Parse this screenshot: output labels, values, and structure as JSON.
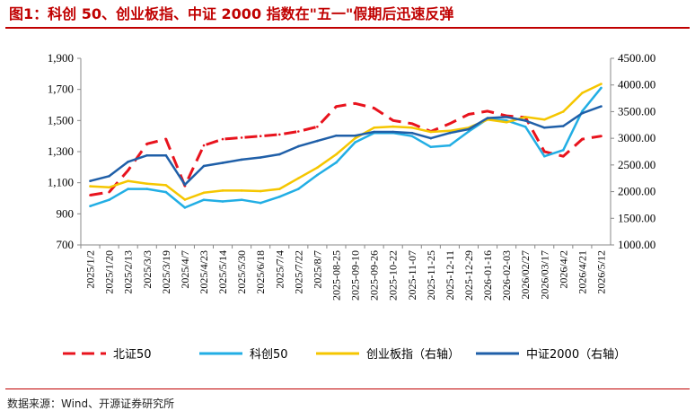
{
  "figure": {
    "title": "图1：科创 50、创业板指、中证 2000 指数在\"五一\"假期后迅速反弹",
    "source": "数据来源：Wind、开源证券研究所"
  },
  "chart_data": {
    "type": "line",
    "title": "图1：科创 50、创业板指、中证 2000 指数在\"五一\"假期后迅速反弹",
    "y_left": {
      "ylim": [
        700,
        1900
      ],
      "ticks": [
        "700",
        "900",
        "1,100",
        "1,300",
        "1,500",
        "1,700",
        "1,900"
      ]
    },
    "y_right": {
      "ylim": [
        1000,
        4500
      ],
      "ticks": [
        "1000.00",
        "1500.00",
        "2000.00",
        "2500.00",
        "3000.00",
        "3500.00",
        "4000.00",
        "4500.00"
      ]
    },
    "x_ticks": [
      "2025/1/2",
      "2025/1/20",
      "2025/2/13",
      "2025/3/3",
      "2025/3/19",
      "2025/4/7",
      "2025/4/23",
      "2025/5/14",
      "2025/5/30",
      "2025/6/18",
      "2025/7/4",
      "2025/7/22",
      "2025/8/7",
      "2025-08-25",
      "2025-09-10",
      "2025-09-26",
      "2025-10-22",
      "2025-11-07",
      "2025-11-25",
      "2025-12-11",
      "2025-12-29",
      "2026-01-16",
      "2026-02-03",
      "2026/02/27",
      "2026/03/17",
      "2026/4/2",
      "2026/4/21",
      "2026/5/12"
    ],
    "series": [
      {
        "name": "北证50",
        "axis": "left",
        "color": "#e8131d",
        "dash": true,
        "values": [
          1020,
          1040,
          1180,
          1350,
          1380,
          1080,
          1340,
          1380,
          1390,
          1400,
          1410,
          1430,
          1460,
          1590,
          1610,
          1580,
          1500,
          1480,
          1430,
          1480,
          1540,
          1560,
          1530,
          1520,
          1300,
          1270,
          1380,
          1400
        ]
      },
      {
        "name": "科创50",
        "axis": "left",
        "color": "#22aee4",
        "dash": false,
        "values": [
          950,
          990,
          1060,
          1060,
          1040,
          940,
          990,
          980,
          990,
          970,
          1010,
          1060,
          1150,
          1230,
          1360,
          1420,
          1420,
          1400,
          1330,
          1340,
          1430,
          1510,
          1500,
          1460,
          1270,
          1310,
          1560,
          1710
        ]
      },
      {
        "name": "创业板指（右轴）",
        "axis": "right",
        "color": "#f5c600",
        "dash": false,
        "values": [
          2100,
          2080,
          2200,
          2150,
          2120,
          1850,
          1980,
          2020,
          2020,
          2010,
          2050,
          2250,
          2450,
          2700,
          3000,
          3200,
          3220,
          3200,
          3120,
          3140,
          3200,
          3350,
          3300,
          3400,
          3350,
          3500,
          3850,
          4020
        ]
      },
      {
        "name": "中证2000（右轴）",
        "axis": "right",
        "color": "#1f5fa8",
        "dash": false,
        "values": [
          2200,
          2290,
          2560,
          2680,
          2680,
          2130,
          2480,
          2540,
          2600,
          2640,
          2700,
          2850,
          2950,
          3050,
          3050,
          3120,
          3120,
          3100,
          3000,
          3100,
          3170,
          3380,
          3400,
          3330,
          3200,
          3230,
          3470,
          3600
        ]
      }
    ]
  }
}
